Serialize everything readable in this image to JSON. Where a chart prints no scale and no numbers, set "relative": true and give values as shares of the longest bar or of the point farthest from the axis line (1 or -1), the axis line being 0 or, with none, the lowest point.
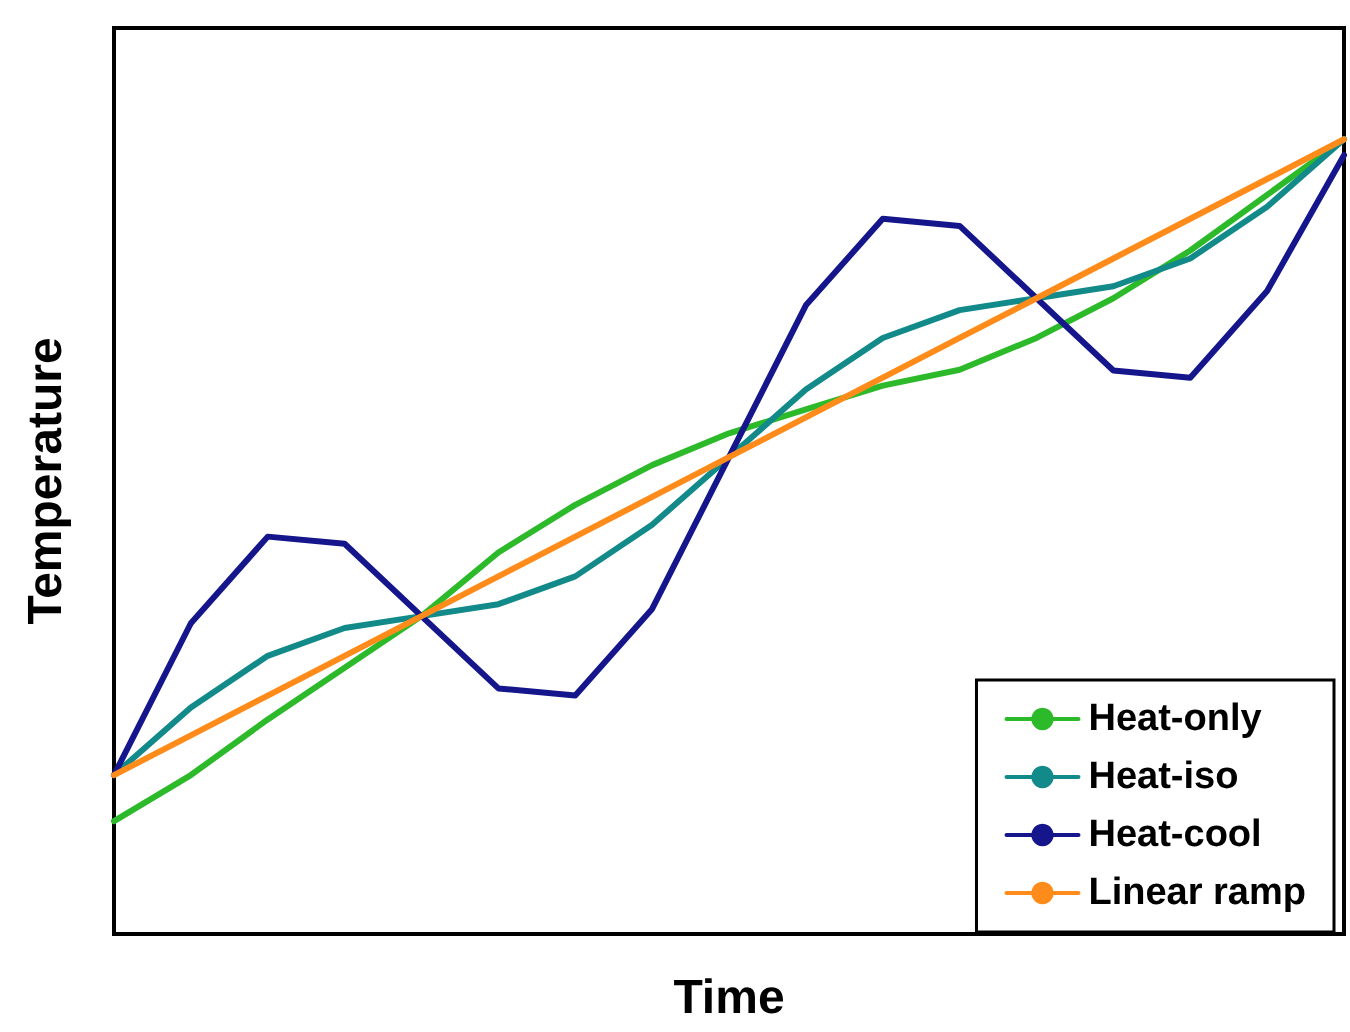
{
  "chart_data": {
    "type": "line",
    "relative": true,
    "xlabel": "Time",
    "ylabel": "Temperature",
    "legend": "bottom right",
    "grid": false,
    "categories": [
      null,
      null,
      null,
      null,
      null,
      null,
      null,
      null,
      null,
      null,
      null,
      null,
      null,
      null,
      null,
      null,
      null
    ],
    "series": [
      {
        "name": "Heat-only",
        "color": "#2dba2a",
        "values": [
          0.142,
          0.2,
          0.27,
          0.335,
          0.4,
          0.48,
          0.54,
          0.59,
          0.63,
          0.66,
          0.69,
          0.71,
          0.75,
          0.8,
          0.86,
          0.93,
          1.0
        ]
      },
      {
        "name": "Heat-iso",
        "color": "#138a8a",
        "values": [
          0.2,
          0.285,
          0.35,
          0.385,
          0.4,
          0.415,
          0.45,
          0.515,
          0.6,
          0.685,
          0.75,
          0.785,
          0.8,
          0.815,
          0.85,
          0.915,
          1.0
        ]
      },
      {
        "name": "Heat-cool",
        "color": "#16168c",
        "values": [
          0.2,
          0.391,
          0.5,
          0.491,
          0.4,
          0.309,
          0.3,
          0.409,
          0.6,
          0.791,
          0.9,
          0.891,
          0.8,
          0.709,
          0.7,
          0.809,
          0.98
        ]
      },
      {
        "name": "Linear ramp",
        "color": "#ff8c1a",
        "values": [
          0.2,
          0.25,
          0.3,
          0.35,
          0.4,
          0.45,
          0.5,
          0.55,
          0.6,
          0.65,
          0.7,
          0.75,
          0.8,
          0.85,
          0.9,
          0.95,
          1.0
        ]
      }
    ]
  }
}
